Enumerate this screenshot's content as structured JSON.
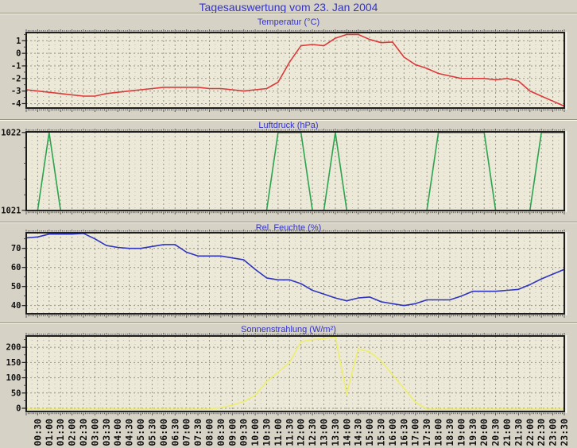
{
  "page": {
    "title": "Tagesauswertung vom 23. Jan 2004",
    "title_color": "#3333cc",
    "background_color": "#d6d2c6",
    "plot_background_color": "#ece9d8"
  },
  "x_axis": {
    "times": [
      "00:00",
      "00:30",
      "01:00",
      "01:30",
      "02:00",
      "02:30",
      "03:00",
      "03:30",
      "04:00",
      "04:30",
      "05:00",
      "05:30",
      "06:00",
      "06:30",
      "07:00",
      "07:30",
      "08:00",
      "08:30",
      "09:00",
      "09:30",
      "10:00",
      "10:30",
      "11:00",
      "11:30",
      "12:00",
      "12:30",
      "13:00",
      "13:30",
      "14:00",
      "14:30",
      "15:00",
      "15:30",
      "16:00",
      "16:30",
      "17:00",
      "17:30",
      "18:00",
      "18:30",
      "19:00",
      "19:30",
      "20:00",
      "20:30",
      "21:00",
      "21:30",
      "22:00",
      "22:30",
      "23:00",
      "23:30"
    ],
    "tick_interval": "30min",
    "minor_tick_interval": "5min",
    "label_rotation_deg": -90
  },
  "chart_data": [
    {
      "type": "line",
      "title": "Temperatur (°C)",
      "line_color": "#dc3a3a",
      "ylim": [
        -4.35,
        1.65
      ],
      "yticks": [
        1,
        0,
        -1,
        -2,
        -3,
        -4
      ],
      "y_minor_step": 0.5,
      "grid": true,
      "values": [
        -2.9,
        -3.0,
        -3.1,
        -3.2,
        -3.3,
        -3.4,
        -3.4,
        -3.2,
        -3.1,
        -3.0,
        -2.9,
        -2.8,
        -2.7,
        -2.7,
        -2.7,
        -2.7,
        -2.8,
        -2.8,
        -2.9,
        -3.0,
        -2.9,
        -2.8,
        -2.3,
        -0.7,
        0.6,
        0.7,
        0.6,
        1.2,
        1.5,
        1.5,
        1.1,
        0.85,
        0.9,
        -0.3,
        -0.9,
        -1.2,
        -1.6,
        -1.8,
        -2.0,
        -2.0,
        -2.0,
        -2.1,
        -2.0,
        -2.2,
        -3.0,
        -3.4,
        -3.8,
        -4.2
      ]
    },
    {
      "type": "line",
      "title": "Luftdruck (hPa)",
      "line_color": "#2ba34f",
      "ylim": [
        1021,
        1022
      ],
      "yticks": [
        1022,
        1021
      ],
      "y_minor_step": 0.2,
      "grid": true,
      "values": [
        1021,
        1021,
        1022,
        1021,
        1021,
        1021,
        1021,
        1021,
        1021,
        1021,
        1021,
        1021,
        1021,
        1021,
        1021,
        1021,
        1021,
        1021,
        1021,
        1021,
        1021,
        1021,
        1022,
        1022,
        1022,
        1021,
        1021,
        1022,
        1021,
        1021,
        1021,
        1021,
        1021,
        1021,
        1021,
        1021,
        1022,
        1022,
        1022,
        1022,
        1022,
        1021,
        1021,
        1021,
        1021,
        1022,
        1022,
        1022
      ]
    },
    {
      "type": "line",
      "title": "Rel. Feuchte (%)",
      "line_color": "#2e34c0",
      "ylim": [
        35.7,
        78.2
      ],
      "yticks": [
        70,
        60,
        50,
        40
      ],
      "y_minor_step": 5,
      "grid": true,
      "values": [
        75.5,
        76,
        77.5,
        77.5,
        77.5,
        78,
        75,
        71.5,
        70.5,
        70,
        70,
        71,
        72,
        72,
        68,
        66,
        66,
        66,
        65,
        64,
        59,
        54.5,
        53.5,
        53.5,
        51.5,
        48,
        46,
        44,
        42.5,
        44,
        44.5,
        42,
        41,
        40,
        41,
        43,
        43,
        43,
        45,
        47.5,
        47.5,
        47.5,
        48,
        48.5,
        51,
        54,
        56.5,
        59
      ]
    },
    {
      "type": "line",
      "title": "Sonnenstrahlung (W/m²)",
      "line_color": "#eded6e",
      "ylim": [
        -10.5,
        236.9
      ],
      "yticks": [
        200,
        150,
        100,
        50,
        0
      ],
      "y_minor_step": 25,
      "grid": true,
      "values": [
        -3,
        -3,
        -3,
        -3,
        -3,
        -3,
        -3,
        -3,
        -3,
        -3,
        -3,
        -3,
        -3,
        -3,
        -3,
        -3,
        -3,
        2,
        10,
        22,
        42,
        88,
        118,
        150,
        218,
        225,
        228,
        237,
        46,
        195,
        185,
        155,
        110,
        65,
        20,
        -3,
        -3,
        -3,
        -3,
        -3,
        -3,
        -3,
        -3,
        -3,
        -3,
        -3,
        -3,
        -3
      ]
    }
  ]
}
